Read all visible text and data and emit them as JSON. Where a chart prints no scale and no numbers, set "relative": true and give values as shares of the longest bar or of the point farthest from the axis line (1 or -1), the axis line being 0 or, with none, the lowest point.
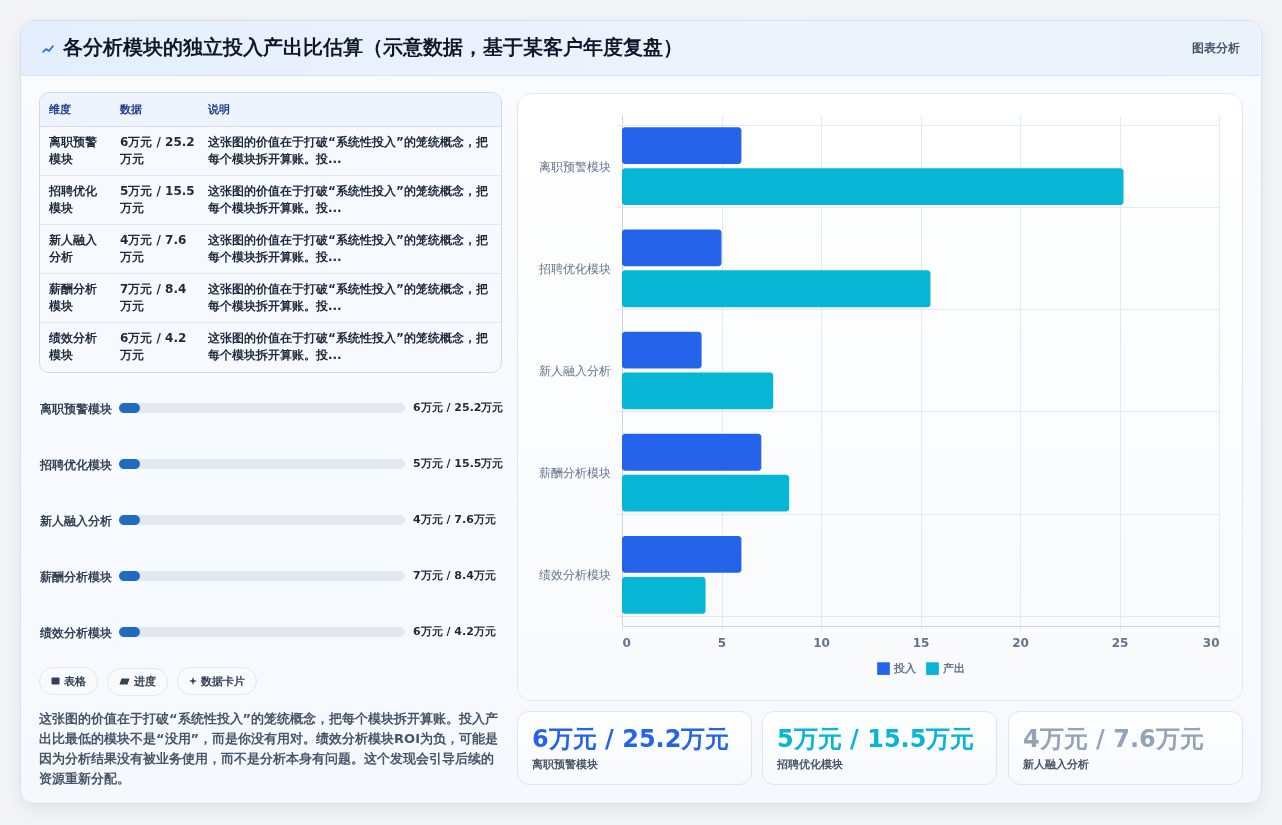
{
  "chart_data": [
    {
      "type": "other",
      "title": "各分析模块的独立投入产出比估算（示意数据，基于某客户年度复盘）",
      "annotations": [
        "图表分析"
      ]
    },
    {
      "type": "other",
      "categories": [
        "维度",
        "数据",
        "说明"
      ],
      "annotations": [
        "离职预警模块",
        "6万元 / 25.2万元",
        "这张图的价值在于打破“系统性投入”的笼统概念，把每个模块拆开算账。投...",
        "招聘优化模块",
        "5万元 / 15.5万元",
        "这张图的价值在于打破“系统性投入”的笼统概念，把每个模块拆开算账。投...",
        "新人融入分析",
        "4万元 / 7.6万元",
        "这张图的价值在于打破“系统性投入”的笼统概念，把每个模块拆开算账。投...",
        "薪酬分析模块",
        "7万元 / 8.4万元",
        "这张图的价值在于打破“系统性投入”的笼统概念，把每个模块拆开算账。投...",
        "绩效分析模块",
        "6万元 / 4.2万元",
        "这张图的价值在于打破“系统性投入”的笼统概念，把每个模块拆开算账。投..."
      ]
    },
    {
      "type": "bar",
      "orientation": "horizontal",
      "relative": true,
      "categories": [
        "离职预警模块",
        "招聘优化模块",
        "新人融入分析",
        "薪酬分析模块",
        "绩效分析模块"
      ],
      "series": [
        {
          "color": "#1e6bc0",
          "values": [
            1,
            1,
            1,
            1,
            1
          ]
        }
      ],
      "annotations": [
        "6万元 / 25.2万元",
        "5万元 / 15.5万元",
        "4万元 / 7.6万元",
        "7万元 / 8.4万元",
        "6万元 / 4.2万元"
      ]
    },
    {
      "type": "other",
      "categories": [
        "表格",
        "进度",
        "数据卡片"
      ],
      "annotations": [
        "这张图的价值在于打破“系统性投入”的笼统概念，把每个模块拆开算账。投入产出比最低的模块不是“没用”，而是你没有用对。绩效分析模块ROI为负，可能是因为分析结果没有被业务使用，而不是分析本身有问题。这个发现会引导后续的资源重新分配。"
      ]
    },
    {
      "type": "bar",
      "orientation": "horizontal",
      "categories": [
        "离职预警模块",
        "招聘优化模块",
        "新人融入分析",
        "薪酬分析模块",
        "绩效分析模块"
      ],
      "series": [
        {
          "name": "投入",
          "color": "#2563eb",
          "values": [
            6,
            5,
            4,
            7,
            6
          ]
        },
        {
          "name": "产出",
          "color": "#06b6d4",
          "values": [
            25.2,
            15.5,
            7.6,
            8.4,
            4.2
          ]
        }
      ],
      "xlim": [
        0,
        30
      ],
      "xticks": [
        0,
        5,
        10,
        15,
        20,
        25,
        30
      ],
      "grid": true,
      "legend": "bottom"
    },
    {
      "type": "other",
      "categories": [
        "离职预警模块",
        "招聘优化模块",
        "新人融入分析"
      ],
      "annotations": [
        "6万元 / 25.2万元",
        "5万元 / 15.5万元",
        "4万元 / 7.6万元"
      ]
    }
  ]
}
